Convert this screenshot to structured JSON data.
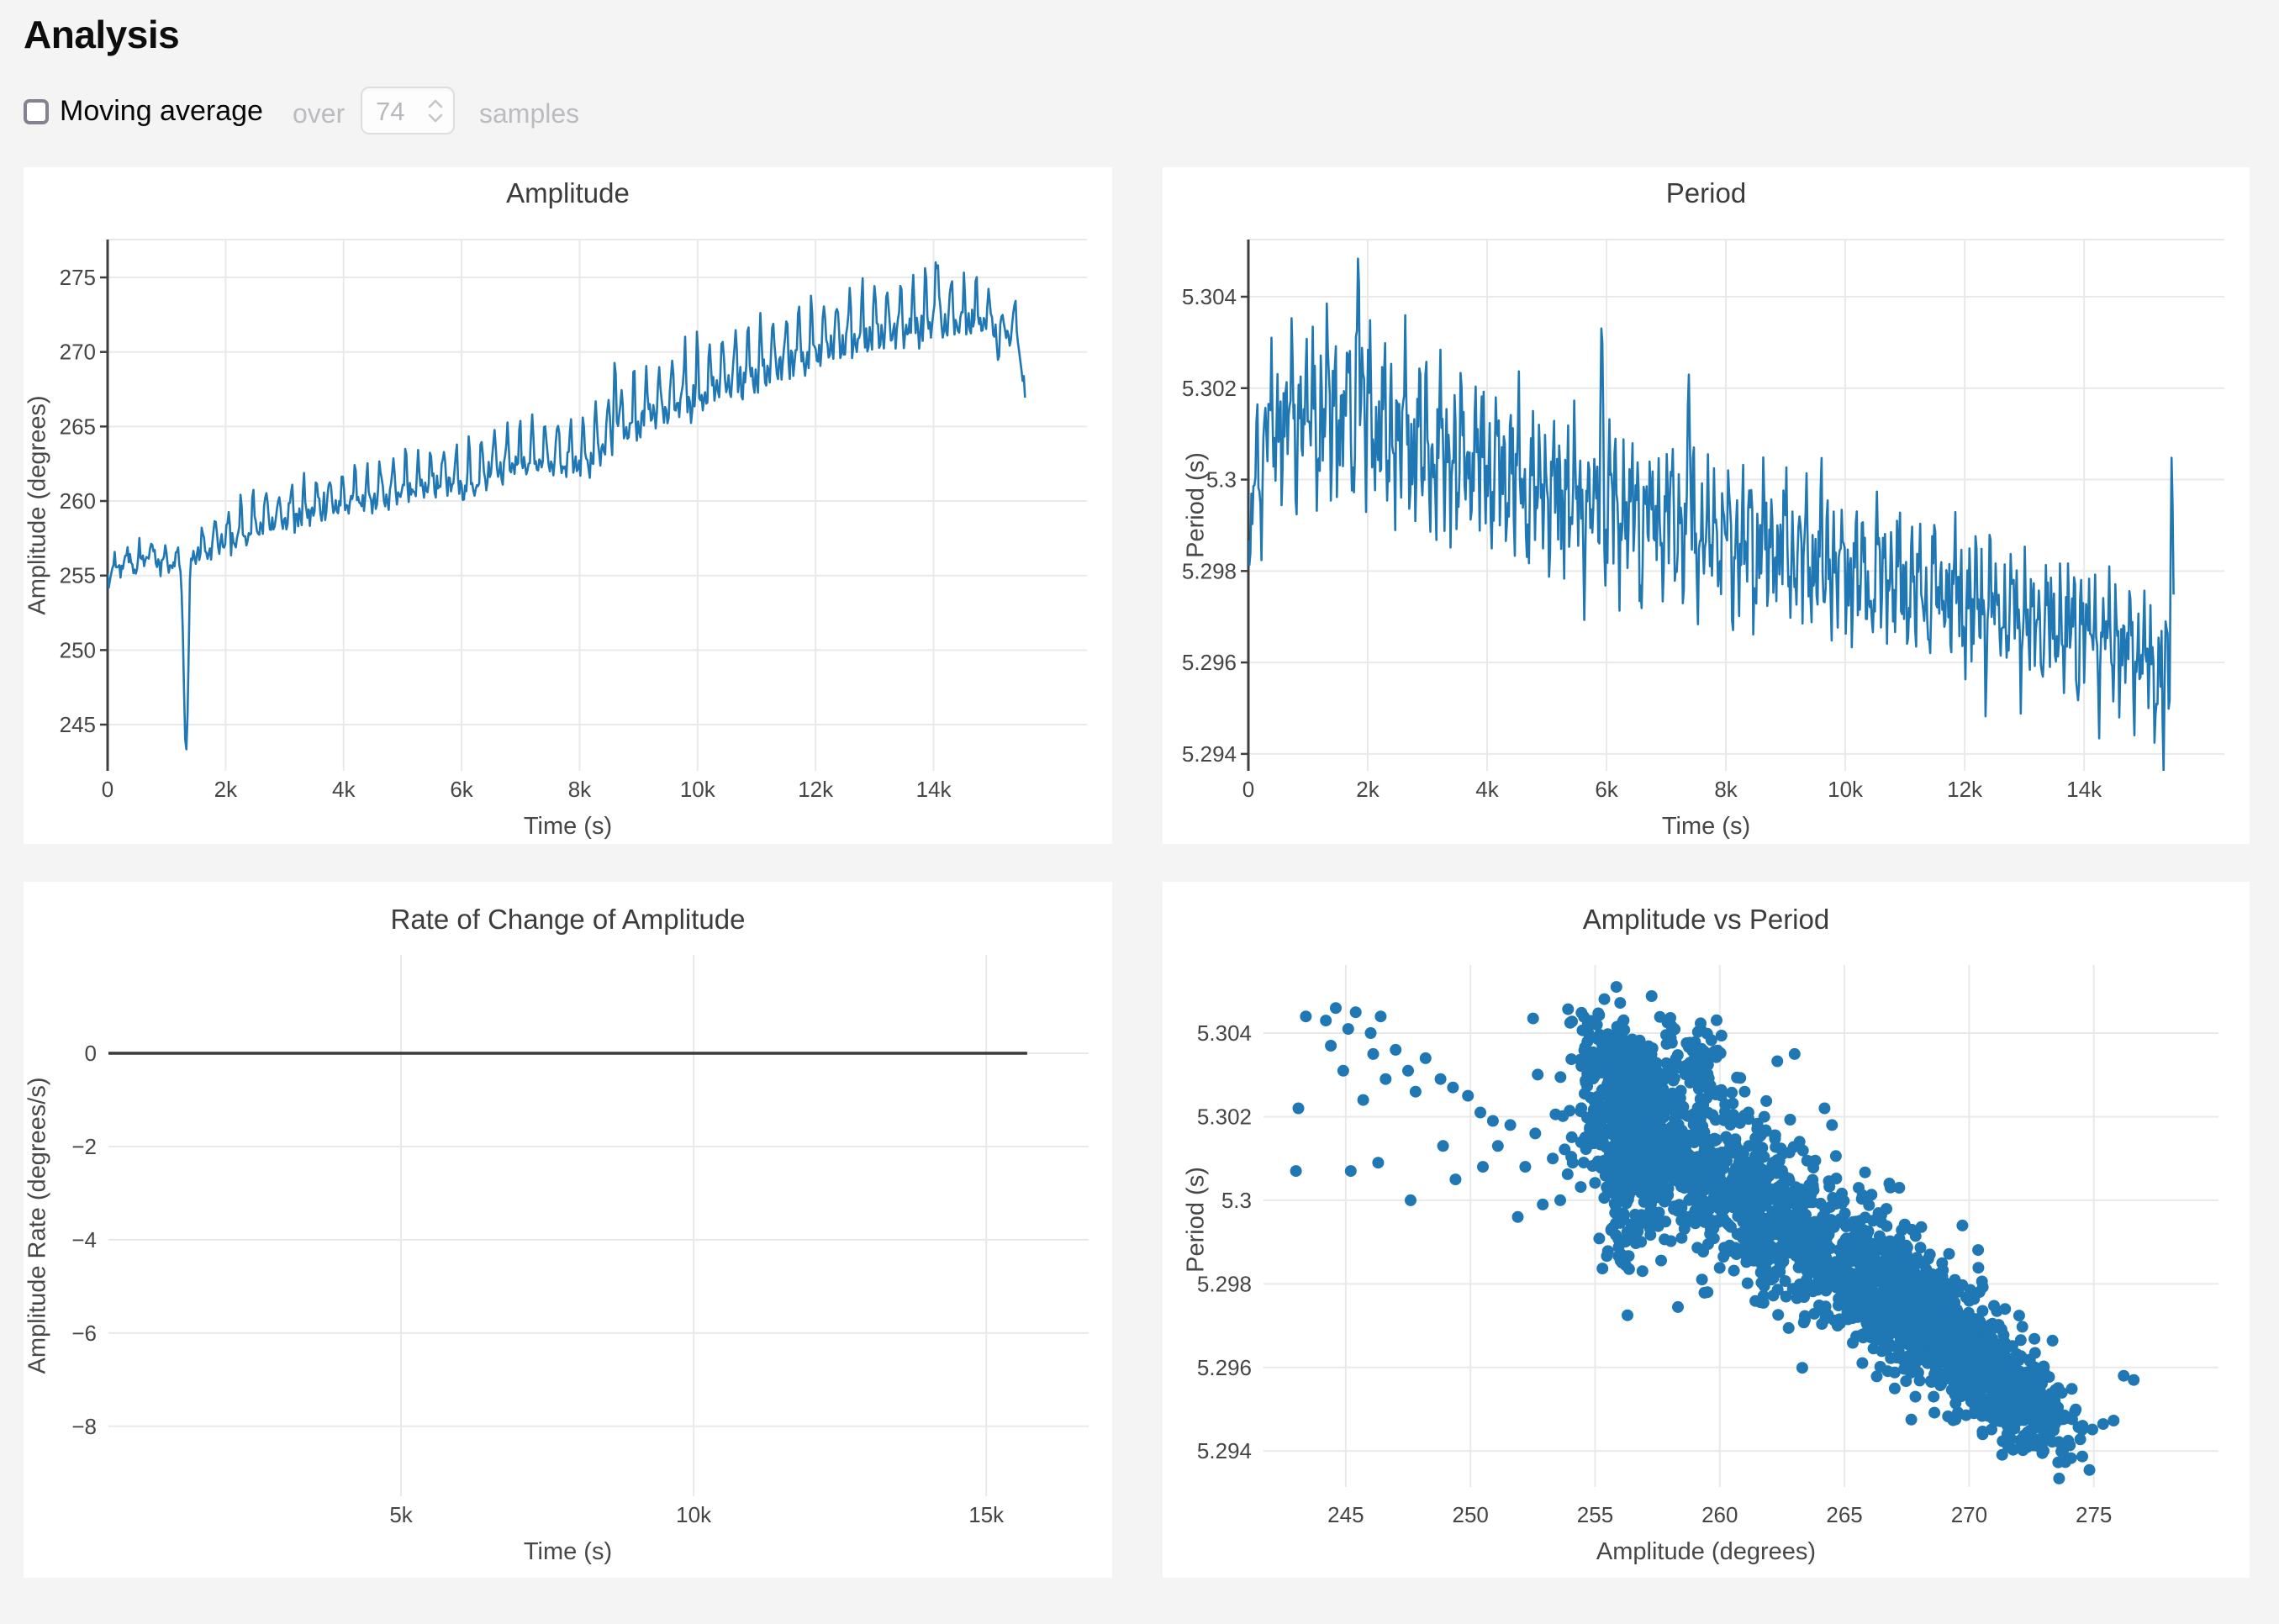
{
  "page": {
    "title": "Analysis"
  },
  "theme": {
    "accent": "#1f77b4",
    "grid": "#e9e9e9",
    "axis": "#3f3f3f",
    "tick_text": "#454545",
    "title_text": "#3c3c3c",
    "page_bg": "#f4f4f5",
    "card_bg": "#ffffff",
    "muted_text": "#bcbcc0"
  },
  "controls": {
    "moving_average_label": "Moving average",
    "checked": false,
    "over_label": "over",
    "samples_value": "74",
    "samples_label": "samples"
  },
  "chart_data": [
    {
      "id": "amplitude",
      "type": "line",
      "title": "Amplitude",
      "xlabel": "Time (s)",
      "ylabel": "Amplitude (degrees)",
      "xlim": [
        0,
        16600
      ],
      "ylim": [
        241.9,
        277.54
      ],
      "xticks": {
        "values": [
          0,
          2000,
          4000,
          6000,
          8000,
          10000,
          12000,
          14000
        ],
        "labels": [
          "0",
          "2k",
          "4k",
          "6k",
          "8k",
          "10k",
          "12k",
          "14k"
        ]
      },
      "yticks": {
        "values": [
          245,
          250,
          255,
          260,
          265,
          270,
          275
        ],
        "labels": [
          "245",
          "250",
          "255",
          "260",
          "265",
          "270",
          "275"
        ]
      },
      "axes": {
        "left_spine": true,
        "top_border": true,
        "grid": true
      },
      "series": {
        "kind": "synthetic_line",
        "seed": 101,
        "n": 780,
        "x_max": 15550,
        "osc_shape": "sawtooth",
        "osc_period": 215,
        "noise": 0.3,
        "trend": [
          [
            0,
            254.9
          ],
          [
            250,
            255.5
          ],
          [
            600,
            255.9
          ],
          [
            1150,
            255.7
          ],
          [
            1500,
            256.3
          ],
          [
            2100,
            257.2
          ],
          [
            2700,
            258.3
          ],
          [
            3300,
            258.9
          ],
          [
            4100,
            259.7
          ],
          [
            4900,
            260.3
          ],
          [
            5700,
            261.0
          ],
          [
            6150,
            260.7
          ],
          [
            6550,
            261.9
          ],
          [
            7300,
            262.2
          ],
          [
            8100,
            262.3
          ],
          [
            8600,
            264.0
          ],
          [
            9300,
            265.6
          ],
          [
            10100,
            266.8
          ],
          [
            10900,
            268.1
          ],
          [
            11700,
            269.4
          ],
          [
            12500,
            270.4
          ],
          [
            13300,
            271.1
          ],
          [
            14100,
            271.6
          ],
          [
            14900,
            271.8
          ],
          [
            15150,
            270.9
          ],
          [
            15400,
            271.5
          ],
          [
            15550,
            266.8
          ]
        ],
        "osc_amp": [
          [
            0,
            1.0
          ],
          [
            1400,
            1.3
          ],
          [
            2200,
            2.0
          ],
          [
            4000,
            2.1
          ],
          [
            6000,
            2.5
          ],
          [
            8000,
            2.8
          ],
          [
            9000,
            3.1
          ],
          [
            10000,
            3.3
          ],
          [
            12000,
            3.1
          ],
          [
            14000,
            3.3
          ],
          [
            15550,
            1.6
          ]
        ],
        "spikes": [
          {
            "x": 1330,
            "y": 243.2,
            "w": 55
          },
          {
            "x": 8600,
            "y": 269.6,
            "w": 28
          },
          {
            "x": 14040,
            "y": 276.2,
            "w": 26
          },
          {
            "x": 15100,
            "y": 269.3,
            "w": 25
          }
        ]
      }
    },
    {
      "id": "period",
      "type": "line",
      "title": "Period",
      "xlabel": "Time (s)",
      "ylabel": "Period (s)",
      "xlim": [
        0,
        16350
      ],
      "ylim": [
        5.29363,
        5.30525
      ],
      "xticks": {
        "values": [
          0,
          2000,
          4000,
          6000,
          8000,
          10000,
          12000,
          14000
        ],
        "labels": [
          "0",
          "2k",
          "4k",
          "6k",
          "8k",
          "10k",
          "12k",
          "14k"
        ]
      },
      "yticks": {
        "values": [
          5.294,
          5.296,
          5.298,
          5.3,
          5.302,
          5.304
        ],
        "labels": [
          "5.294",
          "5.296",
          "5.298",
          "5.3",
          "5.302",
          "5.304"
        ]
      },
      "axes": {
        "left_spine": true,
        "top_border": true,
        "grid": true
      },
      "series": {
        "kind": "synthetic_line",
        "seed": 202,
        "n": 920,
        "x_max": 15500,
        "osc_shape": "hash",
        "osc_period": 118,
        "noise": 0.00028,
        "trend": [
          [
            0,
            5.2978
          ],
          [
            60,
            5.2995
          ],
          [
            150,
            5.3005
          ],
          [
            400,
            5.3014
          ],
          [
            900,
            5.3017
          ],
          [
            1500,
            5.3018
          ],
          [
            2200,
            5.3015
          ],
          [
            3000,
            5.301
          ],
          [
            3800,
            5.3006
          ],
          [
            4600,
            5.3002
          ],
          [
            5400,
            5.2998
          ],
          [
            6200,
            5.2995
          ],
          [
            7000,
            5.2993
          ],
          [
            7800,
            5.299
          ],
          [
            8600,
            5.2988
          ],
          [
            9400,
            5.2985
          ],
          [
            10200,
            5.2982
          ],
          [
            11000,
            5.2979
          ],
          [
            11800,
            5.2976
          ],
          [
            12600,
            5.2973
          ],
          [
            13400,
            5.297
          ],
          [
            14200,
            5.2968
          ],
          [
            14900,
            5.2964
          ],
          [
            15300,
            5.2962
          ],
          [
            15500,
            5.2966
          ]
        ],
        "osc_amp": [
          [
            0,
            0.0008
          ],
          [
            200,
            0.0016
          ],
          [
            700,
            0.0021
          ],
          [
            1500,
            0.0022
          ],
          [
            2500,
            0.0021
          ],
          [
            4000,
            0.002
          ],
          [
            6000,
            0.0019
          ],
          [
            8000,
            0.0018
          ],
          [
            10000,
            0.0017
          ],
          [
            12000,
            0.0016
          ],
          [
            14000,
            0.0015
          ],
          [
            15500,
            0.0015
          ]
        ],
        "spikes": [
          {
            "x": 1840,
            "y": 5.3049,
            "w": 28
          },
          {
            "x": 5920,
            "y": 5.3036,
            "w": 24
          },
          {
            "x": 7380,
            "y": 5.3023,
            "w": 22
          },
          {
            "x": 15330,
            "y": 5.2936,
            "w": 20
          },
          {
            "x": 15470,
            "y": 5.3006,
            "w": 22
          }
        ]
      }
    },
    {
      "id": "rate",
      "type": "line",
      "title": "Rate of Change of Amplitude",
      "xlabel": "Time (s)",
      "ylabel": "Amplitude Rate (degrees/s)",
      "xlim": [
        0,
        16750
      ],
      "ylim": [
        -9.5,
        2.11
      ],
      "xticks": {
        "values": [
          5000,
          10000,
          15000
        ],
        "labels": [
          "5k",
          "10k",
          "15k"
        ]
      },
      "yticks": {
        "values": [
          0,
          -2,
          -4,
          -6,
          -8
        ],
        "labels": [
          "0",
          "−2",
          "−4",
          "−6",
          "−8"
        ]
      },
      "axes": {
        "left_spine": false,
        "top_border": false,
        "grid": true
      },
      "series": {
        "kind": "segments",
        "points": [
          [
            0,
            0
          ],
          [
            15700,
            0
          ]
        ],
        "color": "#3a3a3a",
        "width": 3.5
      }
    },
    {
      "id": "scatter",
      "type": "scatter",
      "title": "Amplitude vs Period",
      "xlabel": "Amplitude (degrees)",
      "ylabel": "Period (s)",
      "xlim": [
        241.7,
        280.0
      ],
      "ylim": [
        5.29314,
        5.30563
      ],
      "xticks": {
        "values": [
          245,
          250,
          255,
          260,
          265,
          270,
          275
        ],
        "labels": [
          "245",
          "250",
          "255",
          "260",
          "265",
          "270",
          "275"
        ]
      },
      "yticks": {
        "values": [
          5.294,
          5.296,
          5.298,
          5.3,
          5.302,
          5.304
        ],
        "labels": [
          "5.294",
          "5.296",
          "5.298",
          "5.3",
          "5.302",
          "5.304"
        ]
      },
      "axes": {
        "left_spine": false,
        "top_border": false,
        "grid": true
      },
      "series": {
        "kind": "scatter_mix",
        "seed": 303,
        "marker_radius": 7,
        "clusters": [
          {
            "n": 620,
            "cx": 257.0,
            "cy": 5.3015,
            "sx": 1.3,
            "sy": 0.001,
            "slope": -0.00038
          },
          {
            "n": 150,
            "cx": 256.1,
            "cy": 5.3033,
            "sx": 0.85,
            "sy": 0.00055,
            "slope": -0.0003
          },
          {
            "n": 70,
            "cx": 259.0,
            "cy": 5.3035,
            "sx": 0.7,
            "sy": 0.00045,
            "slope": -0.0003
          },
          {
            "n": 60,
            "cx": 256.3,
            "cy": 5.2993,
            "sx": 0.55,
            "sy": 0.0008,
            "slope": 0
          },
          {
            "n": 620,
            "cx": 261.7,
            "cy": 5.2998,
            "sx": 1.7,
            "sy": 0.00095,
            "slope": -0.00038
          },
          {
            "n": 780,
            "cx": 267.2,
            "cy": 5.2976,
            "sx": 2.0,
            "sy": 0.00085,
            "slope": -0.00038
          },
          {
            "n": 420,
            "cx": 270.6,
            "cy": 5.296,
            "sx": 1.6,
            "sy": 0.0006,
            "slope": -0.0003
          },
          {
            "n": 130,
            "cx": 272.5,
            "cy": 5.2947,
            "sx": 1.0,
            "sy": 0.0004,
            "slope": -0.0002
          }
        ],
        "points": [
          [
            243.1,
            5.3022
          ],
          [
            243.0,
            5.3007
          ],
          [
            243.4,
            5.3044
          ],
          [
            244.2,
            5.3043
          ],
          [
            244.6,
            5.3046
          ],
          [
            245.1,
            5.3041
          ],
          [
            245.4,
            5.3045
          ],
          [
            246.0,
            5.304
          ],
          [
            246.4,
            5.3044
          ],
          [
            247.0,
            5.3036
          ],
          [
            247.5,
            5.3031
          ],
          [
            248.2,
            5.3034
          ],
          [
            248.8,
            5.3029
          ],
          [
            249.3,
            5.3027
          ],
          [
            249.9,
            5.3025
          ],
          [
            250.4,
            5.3021
          ],
          [
            250.9,
            5.3019
          ],
          [
            244.9,
            5.3031
          ],
          [
            245.7,
            5.3024
          ],
          [
            246.6,
            5.3029
          ],
          [
            244.4,
            5.3037
          ],
          [
            246.1,
            5.3035
          ],
          [
            247.8,
            5.3026
          ],
          [
            245.2,
            5.3007
          ],
          [
            246.3,
            5.3009
          ],
          [
            247.6,
            5.3
          ],
          [
            249.4,
            5.3005
          ],
          [
            250.5,
            5.3008
          ],
          [
            252.2,
            5.3008
          ],
          [
            251.1,
            5.3013
          ],
          [
            248.9,
            5.3013
          ],
          [
            251.6,
            5.3018
          ],
          [
            252.6,
            5.3016
          ],
          [
            253.3,
            5.301
          ],
          [
            254.1,
            5.3009
          ],
          [
            253.6,
            5.3
          ],
          [
            252.9,
            5.2999
          ],
          [
            251.9,
            5.2996
          ],
          [
            255.0,
            5.3021
          ],
          [
            254.6,
            5.3015
          ],
          [
            263.0,
            5.3035
          ],
          [
            264.2,
            5.3022
          ],
          [
            264.5,
            5.3018
          ],
          [
            263.2,
            5.3014
          ],
          [
            266.8,
            5.3004
          ],
          [
            267.2,
            5.3003
          ],
          [
            261.0,
            5.3026
          ],
          [
            276.2,
            5.2958
          ],
          [
            276.6,
            5.2957
          ]
        ]
      }
    }
  ]
}
